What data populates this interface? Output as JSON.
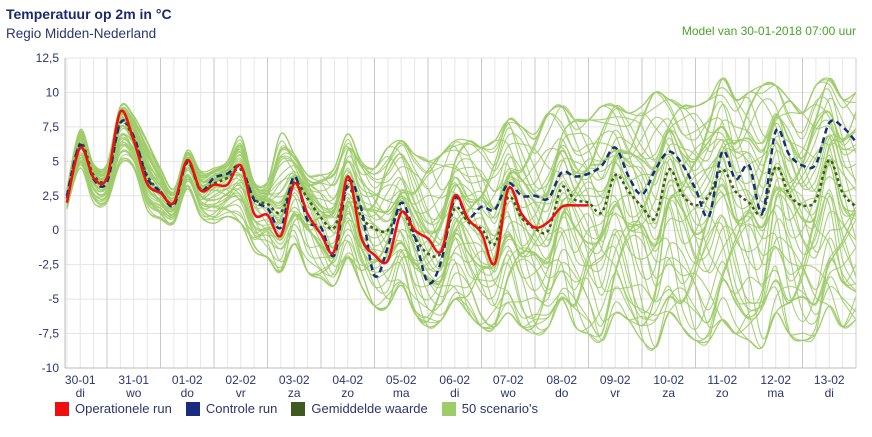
{
  "header": {
    "title": "Temperatuur op 2m in °C",
    "subtitle": "Regio Midden-Nederland",
    "model_info": "Model van 30-01-2018 07:00 uur"
  },
  "legend": [
    {
      "label": "Operationele run",
      "color": "#f00f0f"
    },
    {
      "label": "Controle run",
      "color": "#1a2b80"
    },
    {
      "label": "Gemiddelde waarde",
      "color": "#3f5a1f"
    },
    {
      "label": "50 scenario's",
      "color": "#9fcc6a"
    }
  ],
  "chart_data": {
    "type": "line",
    "title": "Temperatuur op 2m in °C",
    "ylabel": "°C",
    "ylim": [
      -10,
      12.5
    ],
    "y_ticks": [
      "12,5",
      "10",
      "7,5",
      "5",
      "2,5",
      "0",
      "-2,5",
      "-5",
      "-7,5",
      "-10"
    ],
    "y_tick_values": [
      12.5,
      10,
      7.5,
      5,
      2.5,
      0,
      -2.5,
      -5,
      -7.5,
      -10
    ],
    "x_ticks": [
      {
        "date": "30-01",
        "day": "di"
      },
      {
        "date": "31-01",
        "day": "wo"
      },
      {
        "date": "01-02",
        "day": "do"
      },
      {
        "date": "02-02",
        "day": "vr"
      },
      {
        "date": "03-02",
        "day": "za"
      },
      {
        "date": "04-02",
        "day": "zo"
      },
      {
        "date": "05-02",
        "day": "ma"
      },
      {
        "date": "06-02",
        "day": "di"
      },
      {
        "date": "07-02",
        "day": "wo"
      },
      {
        "date": "08-02",
        "day": "do"
      },
      {
        "date": "09-02",
        "day": "vr"
      },
      {
        "date": "10-02",
        "day": "za"
      },
      {
        "date": "11-02",
        "day": "zo"
      },
      {
        "date": "12-02",
        "day": "ma"
      },
      {
        "date": "13-02",
        "day": "di"
      }
    ],
    "x_unit": "hours since 30-01 00:00",
    "x_range_hours": [
      5,
      360
    ],
    "x_start_hours": 6,
    "x_step_hours": 6,
    "grid": true,
    "legend_position": "bottom-left",
    "scenario_count": 50,
    "series": [
      {
        "name": "Operationele run",
        "style": "solid",
        "values": [
          2.0,
          6.0,
          3.8,
          3.8,
          8.6,
          6.5,
          3.4,
          2.7,
          2.0,
          5.1,
          2.9,
          3.3,
          3.3,
          4.7,
          1.2,
          1.1,
          -0.4,
          3.4,
          1.2,
          -0.3,
          -1.5,
          3.9,
          -0.5,
          -1.8,
          -2.2,
          1.3,
          0.0,
          -0.6,
          -1.5,
          2.5,
          0.8,
          -0.2,
          -2.4,
          3.0,
          1.2,
          0.2,
          0.6,
          1.7,
          1.8,
          1.8
        ]
      },
      {
        "name": "Controle run",
        "style": "dashed",
        "values": [
          2.5,
          6.2,
          3.7,
          3.5,
          7.8,
          6.8,
          3.8,
          2.8,
          1.8,
          5.0,
          2.9,
          3.8,
          4.1,
          4.6,
          2.2,
          1.6,
          0.2,
          3.9,
          0.7,
          0.2,
          -1.8,
          3.5,
          1.6,
          -3.3,
          -1.2,
          2.0,
          -0.4,
          -3.8,
          -2.2,
          2.3,
          0.9,
          1.7,
          1.5,
          3.4,
          2.5,
          2.5,
          2.3,
          4.2,
          3.9,
          4.1,
          4.7,
          6.0,
          3.9,
          2.6,
          4.4,
          5.7,
          4.8,
          3.0,
          1.0,
          5.7,
          3.7,
          4.7,
          1.3,
          7.2,
          5.5,
          4.7,
          4.8,
          7.8,
          7.5,
          6.4
        ]
      },
      {
        "name": "Gemiddelde waarde",
        "style": "dotted",
        "values": [
          2.3,
          6.3,
          4.0,
          3.8,
          7.8,
          6.6,
          4.0,
          2.8,
          2.0,
          4.9,
          3.0,
          3.4,
          3.8,
          4.4,
          2.3,
          1.9,
          1.3,
          3.5,
          2.3,
          0.9,
          0.2,
          3.1,
          1.0,
          0.1,
          0.0,
          1.5,
          -0.5,
          -1.7,
          -1.6,
          1.6,
          0.6,
          0.1,
          -1.0,
          2.4,
          0.9,
          0.1,
          0.0,
          3.1,
          2.2,
          2.0,
          1.3,
          4.0,
          2.8,
          1.7,
          0.9,
          4.4,
          2.6,
          1.8,
          2.5,
          4.4,
          2.8,
          2.0,
          1.2,
          4.6,
          2.6,
          1.8,
          2.2,
          5.1,
          2.7,
          1.7
        ]
      }
    ],
    "scenario_envelope": {
      "max": [
        3.0,
        7.3,
        4.8,
        4.8,
        9.0,
        8.3,
        6.5,
        4.5,
        3.0,
        5.8,
        4.3,
        4.5,
        5.0,
        6.8,
        3.5,
        3.5,
        7.0,
        5.5,
        4.0,
        4.0,
        4.5,
        7.0,
        5.0,
        4.5,
        6.0,
        6.5,
        5.5,
        5.0,
        5.5,
        6.5,
        6.5,
        6.0,
        6.5,
        8.0,
        7.5,
        7.0,
        8.5,
        9.0,
        8.0,
        8.0,
        9.0,
        9.0,
        8.5,
        9.0,
        10.0,
        9.5,
        9.0,
        9.0,
        9.5,
        11.0,
        9.5,
        10.0,
        10.5,
        10.5,
        9.5,
        8.5,
        10.5,
        11.0,
        9.5,
        10.0
      ],
      "min": [
        1.5,
        4.5,
        2.0,
        2.0,
        4.8,
        4.5,
        1.5,
        0.8,
        0.5,
        3.0,
        1.0,
        0.5,
        1.0,
        0.5,
        -1.5,
        -2.0,
        -3.0,
        -1.0,
        -3.0,
        -3.5,
        -4.0,
        -2.0,
        -4.0,
        -5.5,
        -5.5,
        -4.0,
        -6.0,
        -7.0,
        -6.5,
        -5.0,
        -6.0,
        -7.0,
        -7.0,
        -6.0,
        -7.0,
        -7.5,
        -7.0,
        -5.0,
        -7.0,
        -7.5,
        -8.0,
        -6.0,
        -6.5,
        -8.0,
        -8.5,
        -6.0,
        -7.0,
        -8.0,
        -8.0,
        -6.5,
        -7.5,
        -8.0,
        -8.5,
        -6.0,
        -7.5,
        -8.0,
        -7.5,
        -5.5,
        -7.0,
        -6.5
      ]
    }
  }
}
